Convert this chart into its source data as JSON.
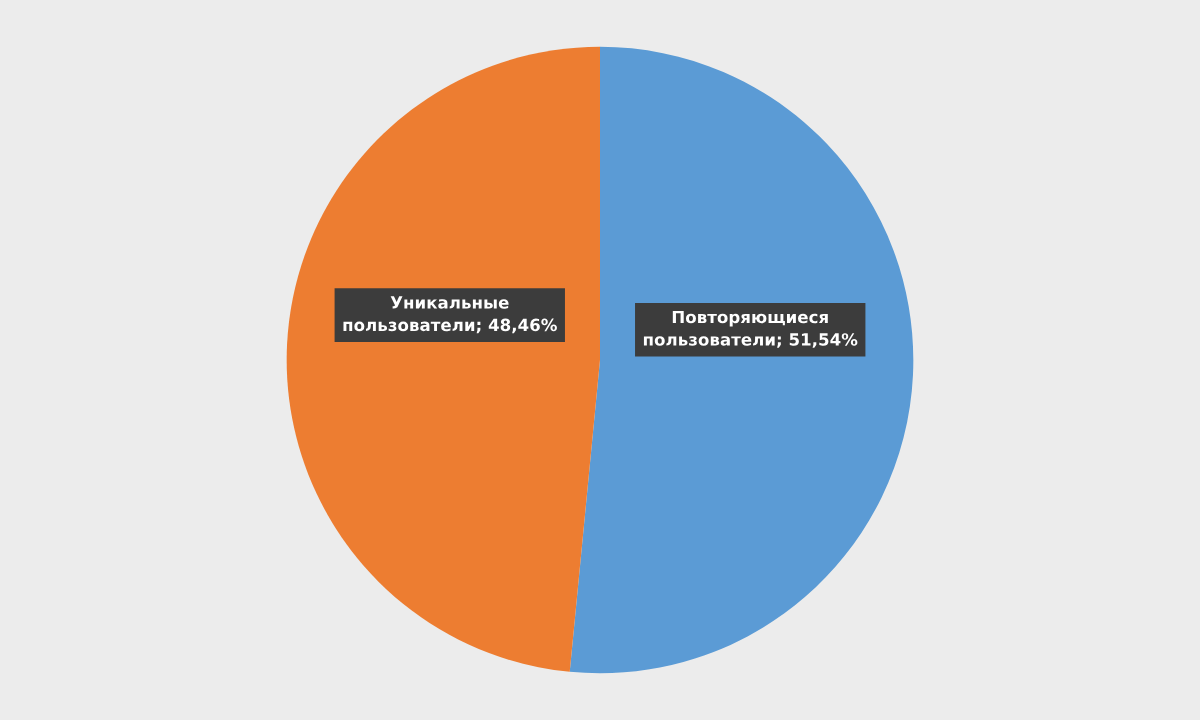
{
  "chart_data": {
    "type": "pie",
    "categories": [
      "Повторяющиеся пользователи",
      "Уникальные пользователи"
    ],
    "values": [
      51.54,
      48.46
    ],
    "colors": [
      "#5b9bd5",
      "#ed7d31"
    ],
    "value_labels": [
      "51,54%",
      "48,46%"
    ]
  }
}
